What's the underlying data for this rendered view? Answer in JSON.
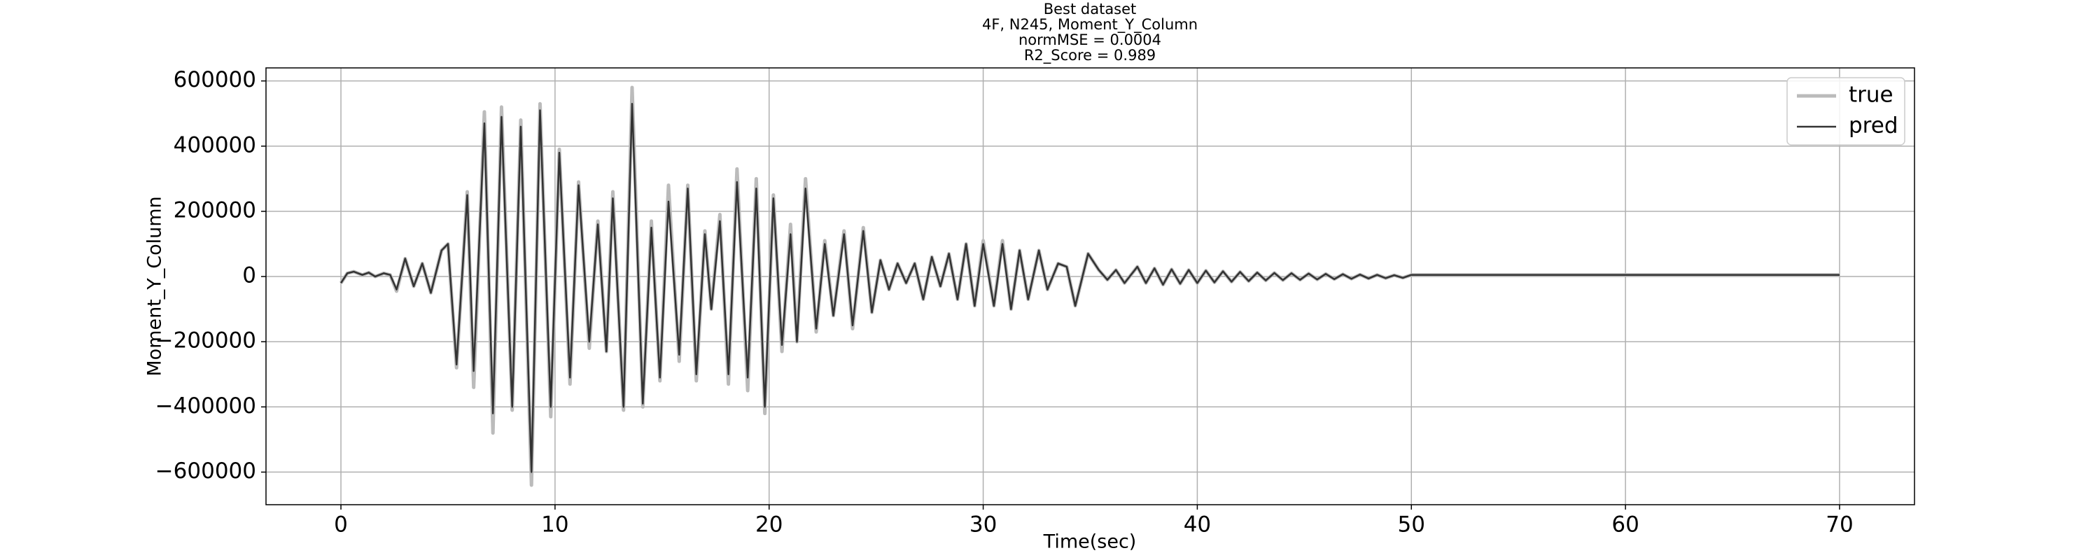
{
  "chart_data": {
    "type": "line",
    "title": [
      "Best dataset",
      "4F, N245, Moment_Y_Column",
      "normMSE = 0.0004",
      "R2_Score = 0.989"
    ],
    "xlabel": "Time(sec)",
    "ylabel": "Moment_Y_Column",
    "xlim": [
      -3.5,
      73.5
    ],
    "ylim": [
      -700000,
      640000
    ],
    "xticks": [
      0,
      10,
      20,
      30,
      40,
      50,
      60,
      70
    ],
    "yticks": [
      {
        "value": -600000,
        "label": "−600000"
      },
      {
        "value": -400000,
        "label": "−400000"
      },
      {
        "value": -200000,
        "label": "−200000"
      },
      0,
      200000,
      400000,
      600000
    ],
    "grid": true,
    "legend": "upper right",
    "x": [
      0,
      0.3,
      0.6,
      1.0,
      1.3,
      1.6,
      2.0,
      2.3,
      2.6,
      3.0,
      3.4,
      3.8,
      4.2,
      4.7,
      5.0,
      5.4,
      5.9,
      6.2,
      6.7,
      7.1,
      7.5,
      8.0,
      8.4,
      8.9,
      9.3,
      9.8,
      10.2,
      10.7,
      11.1,
      11.6,
      12.0,
      12.4,
      12.7,
      13.2,
      13.6,
      14.1,
      14.5,
      14.9,
      15.3,
      15.8,
      16.2,
      16.6,
      17.0,
      17.3,
      17.7,
      18.1,
      18.5,
      19.0,
      19.4,
      19.8,
      20.2,
      20.6,
      21.0,
      21.3,
      21.7,
      22.2,
      22.6,
      23.0,
      23.5,
      23.9,
      24.4,
      24.8,
      25.2,
      25.6,
      26.0,
      26.4,
      26.8,
      27.2,
      27.6,
      28.0,
      28.4,
      28.8,
      29.2,
      29.6,
      30.0,
      30.5,
      30.9,
      31.3,
      31.7,
      32.1,
      32.6,
      33.0,
      33.5,
      33.9,
      34.3,
      34.9,
      35.4,
      35.8,
      36.2,
      36.6,
      37.2,
      37.6,
      38.0,
      38.4,
      38.8,
      39.2,
      39.6,
      40.0,
      40.4,
      40.8,
      41.2,
      41.6,
      42.0,
      42.4,
      42.8,
      43.2,
      43.6,
      44.0,
      44.4,
      44.8,
      45.2,
      45.6,
      46.0,
      46.4,
      46.8,
      47.2,
      47.6,
      48.0,
      48.4,
      48.8,
      49.2,
      49.6,
      50,
      52,
      54,
      56,
      58,
      60,
      62,
      64,
      66,
      68,
      70
    ],
    "series": [
      {
        "name": "true",
        "color": "#bbbbbb",
        "values": [
          -20000,
          10000,
          15000,
          5000,
          12000,
          0,
          10000,
          5000,
          -45000,
          55000,
          -30000,
          40000,
          -50000,
          80000,
          100000,
          -280000,
          260000,
          -340000,
          505000,
          -480000,
          520000,
          -410000,
          480000,
          -640000,
          530000,
          -430000,
          390000,
          -330000,
          290000,
          -220000,
          170000,
          -230000,
          260000,
          -410000,
          580000,
          -400000,
          170000,
          -320000,
          280000,
          -260000,
          280000,
          -320000,
          140000,
          -100000,
          190000,
          -330000,
          330000,
          -350000,
          300000,
          -420000,
          250000,
          -230000,
          160000,
          -200000,
          300000,
          -170000,
          110000,
          -120000,
          140000,
          -160000,
          150000,
          -110000,
          50000,
          -40000,
          40000,
          -20000,
          40000,
          -70000,
          60000,
          -30000,
          70000,
          -70000,
          100000,
          -90000,
          110000,
          -90000,
          110000,
          -100000,
          80000,
          -70000,
          80000,
          -40000,
          40000,
          30000,
          -90000,
          70000,
          20000,
          -10000,
          20000,
          -20000,
          30000,
          -20000,
          25000,
          -25000,
          22000,
          -22000,
          20000,
          -20000,
          18000,
          -18000,
          16000,
          -16000,
          14000,
          -14000,
          12000,
          -12000,
          11000,
          -11000,
          10000,
          -10000,
          9000,
          -9000,
          8000,
          -8000,
          7000,
          -7000,
          6000,
          -6000,
          5000,
          -5000,
          4000,
          -4000,
          5000,
          5000,
          5000,
          5000,
          5000,
          5000,
          5000,
          5000,
          5000,
          5000,
          5000
        ]
      },
      {
        "name": "pred",
        "color": "#333333",
        "values": [
          -20000,
          10000,
          15000,
          5000,
          12000,
          0,
          10000,
          5000,
          -40000,
          55000,
          -30000,
          40000,
          -50000,
          80000,
          100000,
          -270000,
          250000,
          -290000,
          470000,
          -420000,
          490000,
          -400000,
          460000,
          -600000,
          510000,
          -400000,
          380000,
          -310000,
          280000,
          -200000,
          160000,
          -230000,
          240000,
          -400000,
          530000,
          -390000,
          150000,
          -310000,
          230000,
          -240000,
          270000,
          -300000,
          130000,
          -100000,
          170000,
          -300000,
          290000,
          -310000,
          270000,
          -400000,
          240000,
          -210000,
          130000,
          -200000,
          270000,
          -160000,
          100000,
          -120000,
          130000,
          -150000,
          140000,
          -110000,
          50000,
          -40000,
          40000,
          -20000,
          40000,
          -70000,
          60000,
          -30000,
          70000,
          -70000,
          100000,
          -90000,
          100000,
          -90000,
          100000,
          -100000,
          80000,
          -70000,
          80000,
          -40000,
          40000,
          30000,
          -90000,
          70000,
          20000,
          -10000,
          20000,
          -20000,
          30000,
          -20000,
          25000,
          -25000,
          22000,
          -22000,
          20000,
          -20000,
          18000,
          -18000,
          16000,
          -16000,
          14000,
          -14000,
          12000,
          -12000,
          11000,
          -11000,
          10000,
          -10000,
          9000,
          -9000,
          8000,
          -8000,
          7000,
          -7000,
          6000,
          -6000,
          5000,
          -5000,
          4000,
          -4000,
          5000,
          5000,
          5000,
          5000,
          5000,
          5000,
          5000,
          5000,
          5000,
          5000,
          5000
        ]
      }
    ]
  }
}
